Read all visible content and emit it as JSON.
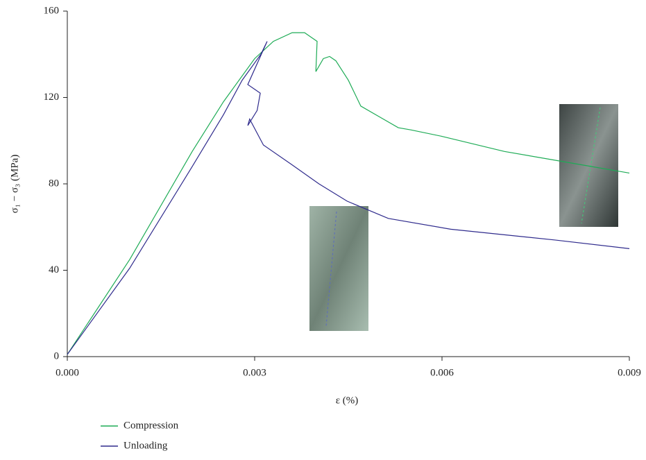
{
  "chart_data": {
    "type": "line",
    "xlabel": "ε (%)",
    "ylabel": "σ₁ − σ₃ (MPa)",
    "xlim": [
      0,
      0.009
    ],
    "xticks": [
      {
        "value": 0,
        "label": "0.000"
      },
      0.003,
      0.006,
      0.009
    ],
    "ylim": [
      0,
      160
    ],
    "yticks": [
      0,
      40,
      80,
      120,
      160
    ],
    "legend": "bottom-left",
    "series": [
      {
        "name": "Compression",
        "color": "#1dab55",
        "x": [
          0,
          0.001,
          0.002,
          0.0025,
          0.003,
          0.0033,
          0.0036,
          0.0038,
          0.0039,
          0.004,
          0.00398,
          0.0041,
          0.0042,
          0.0043,
          0.0045,
          0.0047,
          0.005,
          0.0053,
          0.0055,
          0.006,
          0.007,
          0.008,
          0.009
        ],
        "values": [
          1,
          45,
          95,
          118,
          138,
          146,
          150,
          150,
          148,
          146,
          132,
          138,
          139,
          137,
          128,
          116,
          111,
          106,
          105,
          102,
          95,
          90,
          85
        ]
      },
      {
        "name": "Unloading",
        "color": "#2e2a8c",
        "x": [
          0,
          0.001,
          0.002,
          0.0025,
          0.0028,
          0.0031,
          0.0032,
          0.00289,
          0.00309,
          0.00304,
          0.00289,
          0.00292,
          0.00314,
          0.00359,
          0.00403,
          0.00448,
          0.00514,
          0.00614,
          0.00781,
          0.009
        ],
        "values": [
          1,
          41,
          88,
          112,
          128,
          140,
          146,
          126,
          122,
          114,
          107,
          110,
          98,
          89,
          80,
          72,
          64,
          59,
          54,
          50
        ]
      }
    ]
  }
}
